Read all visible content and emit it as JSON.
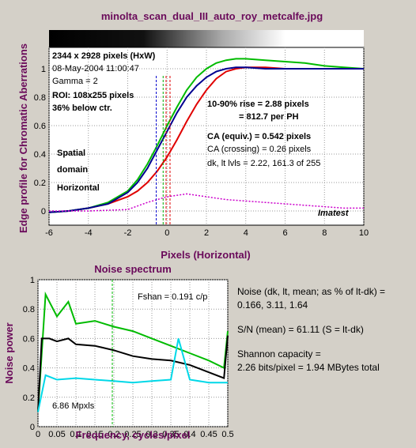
{
  "title": "minolta_scan_dual_III_auto_roy_metcalfe.jpg",
  "edge_chart": {
    "ylabel": "Edge profile for Chromatic Aberrations",
    "xlabel": "Pixels (Horizontal)",
    "annotations": {
      "size": "2344 x 2928 pixels (HxW)",
      "date": "08-May-2004 11:00:47",
      "gamma": "Gamma = 2",
      "roi": "ROI: 108x255 pixels",
      "below": "36% below ctr.",
      "rise1": "10-90% rise = 2.88 pixels",
      "rise2": "= 812.7 per PH",
      "ca_equiv": "CA (equiv.) = 0.542 pixels",
      "ca_cross": "CA (crossing) = 0.26 pixels",
      "dk_lt": "dk, lt lvls = 2.22, 161.3 of 255",
      "spatial": "Spatial",
      "domain": "domain",
      "horizontal": "Horizontal",
      "brand": "Imatest"
    },
    "colors": {
      "red": "#e00000",
      "green": "#00bb00",
      "blue": "#000090",
      "magenta": "#cc00cc"
    }
  },
  "noise_chart": {
    "title": "Noise spectrum",
    "ylabel": "Noise power",
    "xlabel": "Frequency, cycles/pixel",
    "fshan": "Fshan = 0.191 c/p",
    "mpxls": "6.86 Mpxls"
  },
  "side_text": {
    "noise1": "Noise (dk, lt, mean; as % of lt-dk) =",
    "noise2": "0.166,   3.11,   1.64",
    "sn": "S/N (mean) = 61.11   (S = lt-dk)",
    "shannon1": "Shannon capacity =",
    "shannon2": "2.26 bits/pixel = 1.94 MBytes total"
  },
  "chart_data": [
    {
      "type": "line",
      "title": "minolta_scan_dual_III_auto_roy_metcalfe.jpg",
      "xlabel": "Pixels (Horizontal)",
      "ylabel": "Edge profile for Chromatic Aberrations",
      "xlim": [
        -6,
        10
      ],
      "ylim": [
        -0.1,
        1.15
      ],
      "xticks": [
        -6,
        -4,
        -2,
        0,
        2,
        4,
        6,
        8,
        10
      ],
      "yticks": [
        0,
        0.2,
        0.4,
        0.6,
        0.8,
        1
      ],
      "series": [
        {
          "color": "red",
          "x": [
            -6,
            -5,
            -4,
            -3,
            -2,
            -1.5,
            -1,
            -0.5,
            0,
            0.5,
            1,
            1.5,
            2,
            2.5,
            3,
            3.5,
            4,
            5,
            6,
            7,
            8,
            9,
            10
          ],
          "y": [
            -0.01,
            0,
            0.02,
            0.05,
            0.1,
            0.14,
            0.2,
            0.28,
            0.38,
            0.5,
            0.63,
            0.75,
            0.85,
            0.93,
            0.98,
            1.0,
            1.01,
            1.01,
            1.0,
            1.0,
            1.0,
            1.0,
            1.0
          ]
        },
        {
          "color": "green",
          "x": [
            -6,
            -5,
            -4,
            -3,
            -2,
            -1.5,
            -1,
            -0.5,
            0,
            0.5,
            1,
            1.5,
            2,
            2.5,
            3,
            3.5,
            4,
            5,
            6,
            7,
            8,
            9,
            10
          ],
          "y": [
            -0.01,
            0,
            0.02,
            0.06,
            0.14,
            0.22,
            0.33,
            0.46,
            0.6,
            0.73,
            0.85,
            0.94,
            1.0,
            1.04,
            1.06,
            1.07,
            1.07,
            1.06,
            1.05,
            1.04,
            1.02,
            1.01,
            1.0
          ]
        },
        {
          "color": "blue",
          "x": [
            -6,
            -5,
            -4,
            -3,
            -2,
            -1.5,
            -1,
            -0.5,
            0,
            0.5,
            1,
            1.5,
            2,
            2.5,
            3,
            3.5,
            4,
            5,
            6,
            7,
            8,
            9,
            10
          ],
          "y": [
            -0.01,
            0,
            0.02,
            0.05,
            0.13,
            0.2,
            0.3,
            0.43,
            0.56,
            0.69,
            0.8,
            0.88,
            0.94,
            0.98,
            1.0,
            1.01,
            1.01,
            1.0,
            1.0,
            1.0,
            1.0,
            1.0,
            1.0
          ]
        },
        {
          "color": "magenta",
          "x": [
            -6,
            -4,
            -2,
            -1,
            0,
            1,
            2,
            3,
            4,
            5,
            6,
            7,
            8,
            9,
            10
          ],
          "y": [
            0,
            0,
            0.01,
            0.06,
            0.1,
            0.12,
            0.1,
            0.08,
            0.07,
            0.06,
            0.05,
            0.04,
            0.03,
            0.02,
            0.02
          ]
        }
      ]
    },
    {
      "type": "line",
      "title": "Noise spectrum",
      "xlabel": "Frequency, cycles/pixel",
      "ylabel": "Noise power",
      "xlim": [
        0,
        0.5
      ],
      "ylim": [
        0,
        1
      ],
      "xticks": [
        0,
        0.05,
        0.1,
        0.15,
        0.2,
        0.25,
        0.3,
        0.35,
        0.4,
        0.45,
        0.5
      ],
      "yticks": [
        0,
        0.2,
        0.4,
        0.6,
        0.8,
        1
      ],
      "series": [
        {
          "color": "green",
          "x": [
            0,
            0.02,
            0.05,
            0.08,
            0.1,
            0.15,
            0.2,
            0.25,
            0.3,
            0.35,
            0.4,
            0.45,
            0.49,
            0.5
          ],
          "y": [
            0.1,
            0.9,
            0.75,
            0.85,
            0.7,
            0.72,
            0.68,
            0.65,
            0.6,
            0.55,
            0.5,
            0.45,
            0.4,
            0.65
          ]
        },
        {
          "color": "black",
          "x": [
            0,
            0.01,
            0.03,
            0.05,
            0.08,
            0.1,
            0.15,
            0.2,
            0.25,
            0.3,
            0.35,
            0.4,
            0.45,
            0.49,
            0.5
          ],
          "y": [
            0.1,
            0.6,
            0.6,
            0.58,
            0.6,
            0.56,
            0.55,
            0.52,
            0.48,
            0.46,
            0.45,
            0.42,
            0.37,
            0.33,
            0.62
          ]
        },
        {
          "color": "cyan",
          "x": [
            0,
            0.02,
            0.05,
            0.1,
            0.15,
            0.2,
            0.25,
            0.3,
            0.35,
            0.37,
            0.4,
            0.45,
            0.5
          ],
          "y": [
            0.1,
            0.35,
            0.32,
            0.33,
            0.32,
            0.31,
            0.3,
            0.31,
            0.32,
            0.6,
            0.32,
            0.3,
            0.3
          ]
        }
      ]
    }
  ]
}
